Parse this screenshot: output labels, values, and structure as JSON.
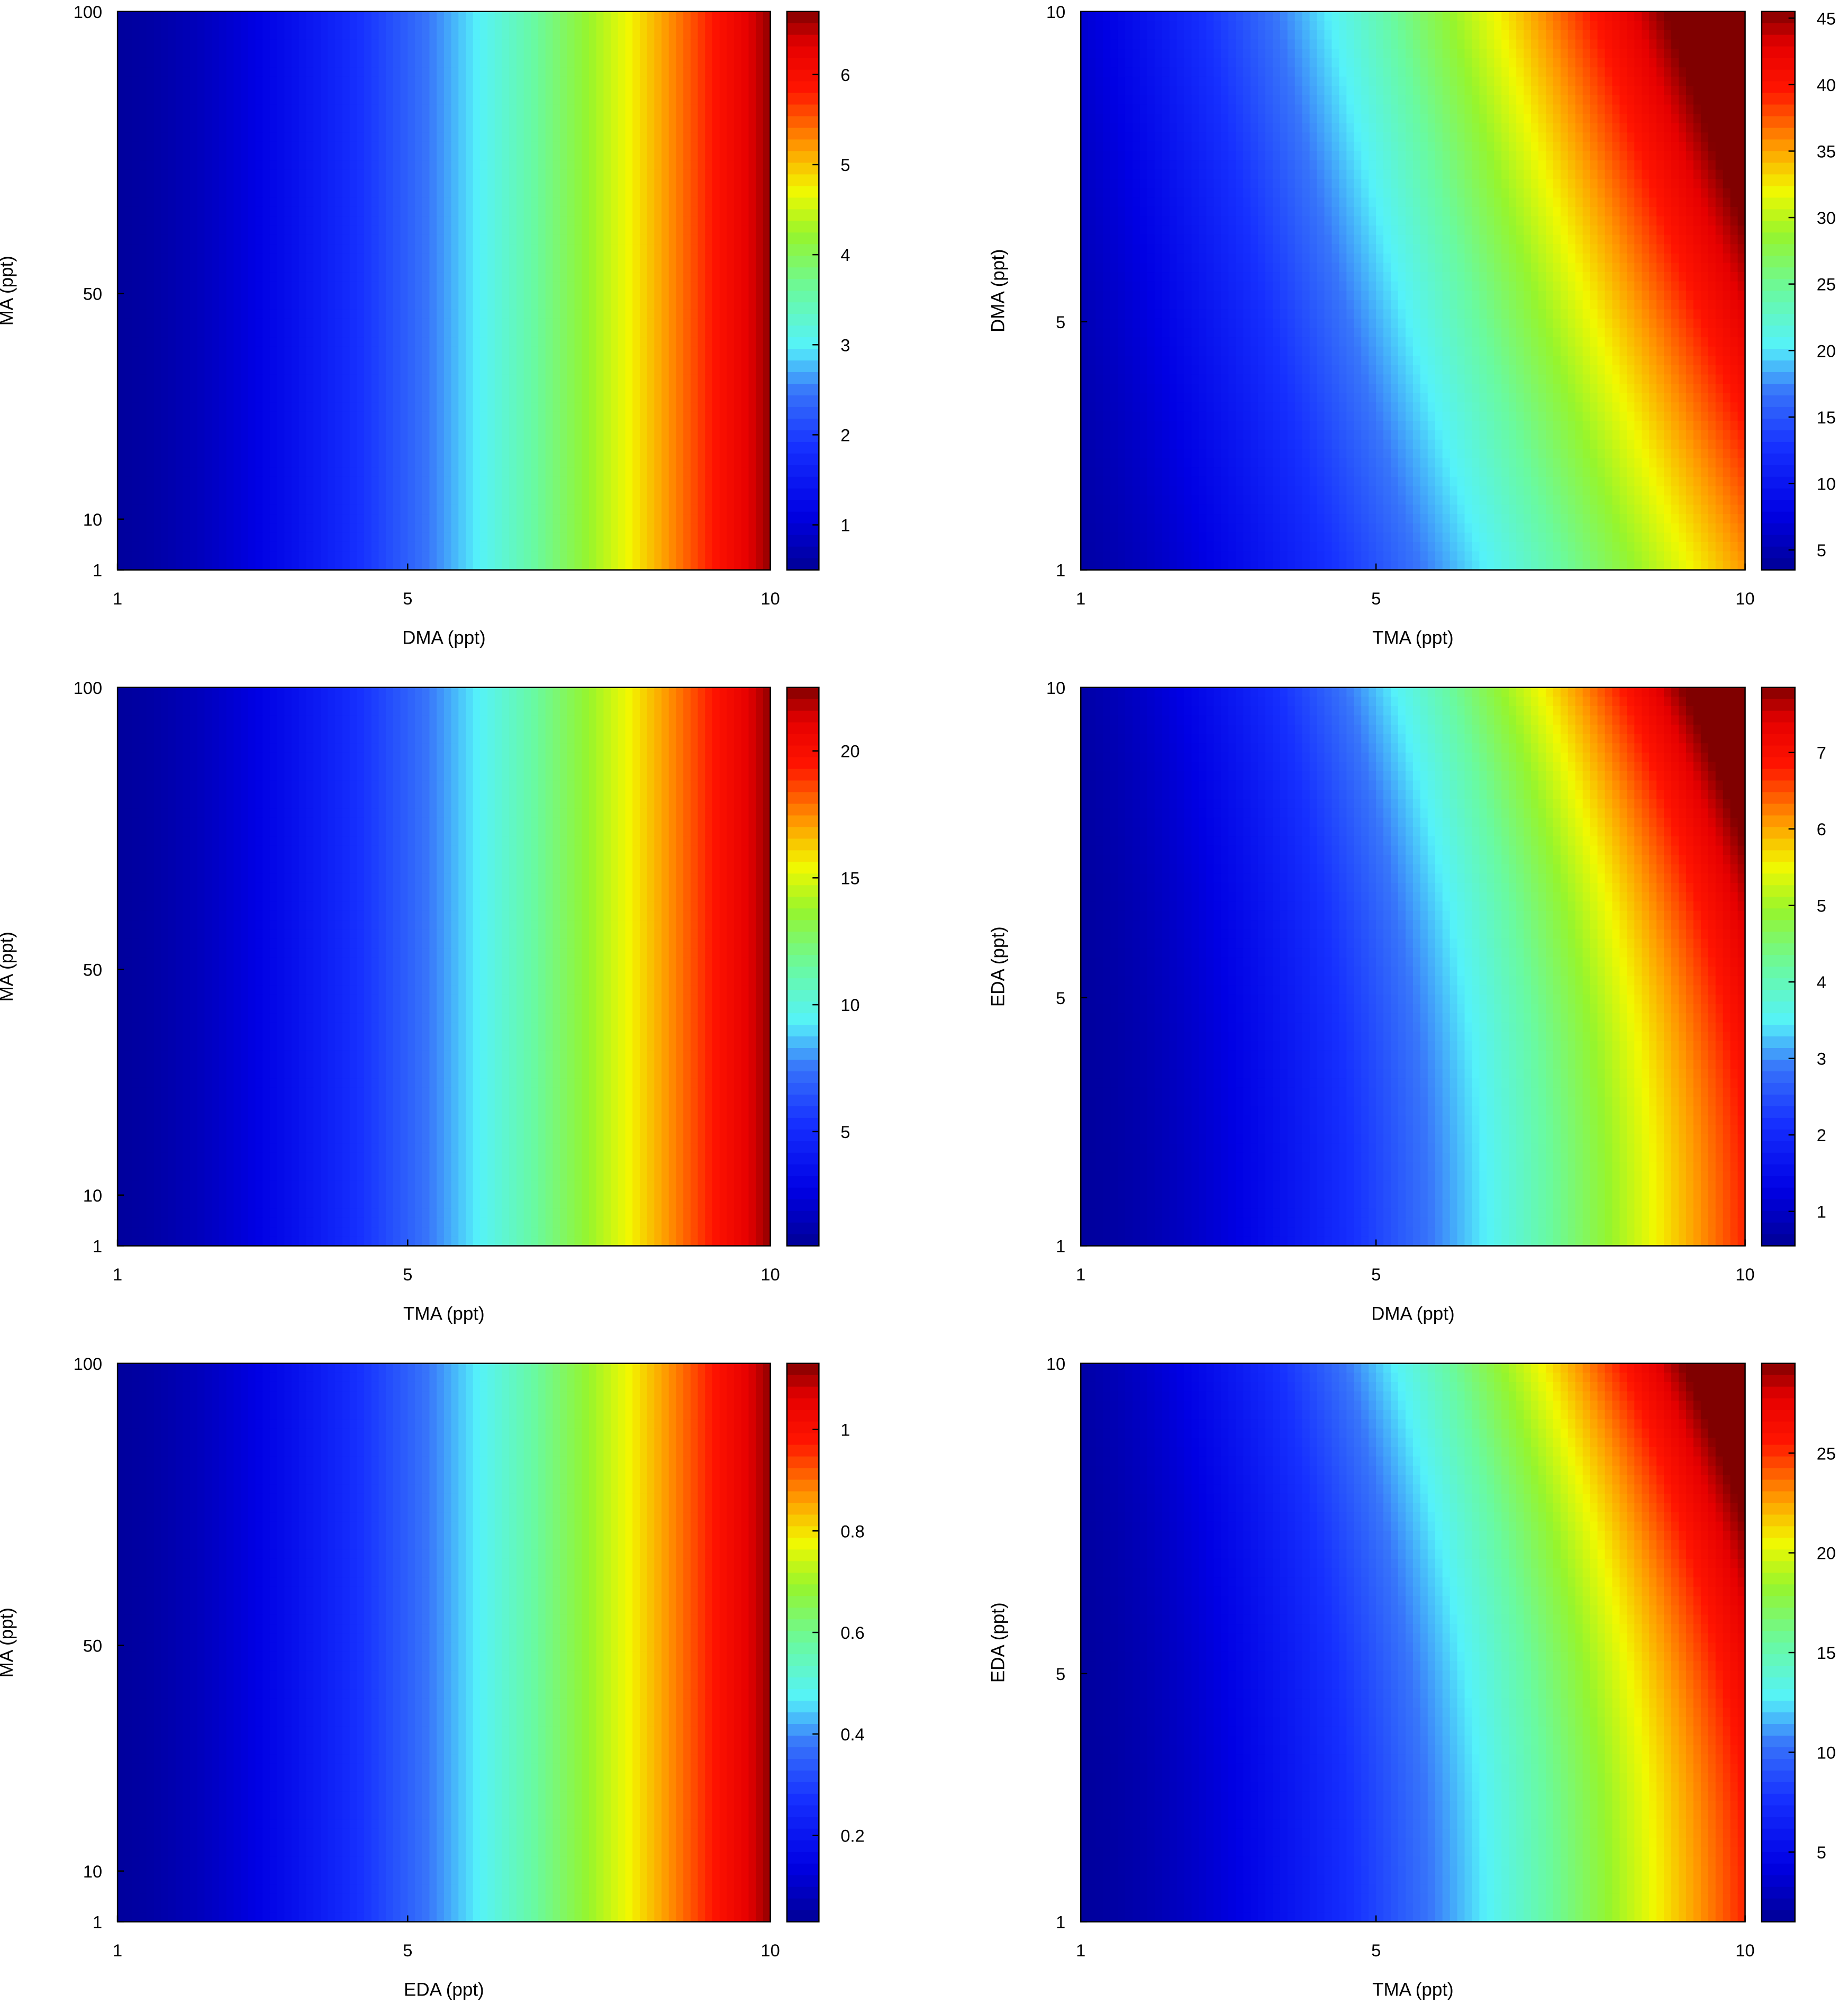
{
  "chart_data": [
    {
      "type": "heatmap",
      "xlabel": "DMA (ppt)",
      "ylabel": "MA (ppt)",
      "xlim": [
        1,
        10
      ],
      "ylim": [
        1,
        100
      ],
      "x_ticks": [
        "1",
        "5",
        "10"
      ],
      "y_ticks": [
        "1",
        "10",
        "50",
        "100"
      ],
      "colorbar": {
        "range": [
          0.5,
          6.7
        ],
        "ticks": [
          "1",
          "2",
          "3",
          "4",
          "5",
          "6"
        ]
      },
      "value_range": [
        0.5,
        6.7
      ],
      "x_position_of_value": [
        0,
        0.03,
        0.26,
        0.56,
        0.78,
        0.9,
        1.0
      ],
      "pattern": "vertical",
      "samples": [
        {
          "x": 1,
          "values": [
            0.5
          ]
        },
        {
          "x": 3,
          "values": [
            1.4
          ]
        },
        {
          "x": 6,
          "values": [
            2.9
          ]
        },
        {
          "x": 8,
          "values": [
            4.4
          ]
        },
        {
          "x": 9,
          "values": [
            5.4
          ]
        },
        {
          "x": 10,
          "values": [
            6.7
          ]
        }
      ]
    },
    {
      "type": "heatmap",
      "xlabel": "TMA (ppt)",
      "ylabel": "DMA (ppt)",
      "xlim": [
        1,
        10
      ],
      "ylim": [
        1,
        10
      ],
      "x_ticks": [
        "1",
        "5",
        "10"
      ],
      "y_ticks": [
        "1",
        "5",
        "10"
      ],
      "colorbar": {
        "range": [
          3.5,
          45.5
        ],
        "ticks": [
          "5",
          "10",
          "15",
          "20",
          "25",
          "30",
          "35",
          "40",
          "45"
        ]
      },
      "value_range": [
        3.5,
        45.5
      ],
      "pattern": "diagonal",
      "samples": [
        {
          "x": 1,
          "y": 1,
          "value": 3.6
        },
        {
          "x": 7,
          "y": 1,
          "value": 16
        },
        {
          "x": 10,
          "y": 1,
          "value": 30
        },
        {
          "x": 4,
          "y": 10,
          "value": 16
        },
        {
          "x": 8,
          "y": 10,
          "value": 30
        },
        {
          "x": 10,
          "y": 10,
          "value": 45
        }
      ]
    },
    {
      "type": "heatmap",
      "xlabel": "TMA (ppt)",
      "ylabel": "MA (ppt)",
      "xlim": [
        1,
        10
      ],
      "ylim": [
        1,
        100
      ],
      "x_ticks": [
        "1",
        "5",
        "10"
      ],
      "y_ticks": [
        "1",
        "10",
        "50",
        "100"
      ],
      "colorbar": {
        "range": [
          0.5,
          22.5
        ],
        "ticks": [
          "5",
          "10",
          "15",
          "20"
        ]
      },
      "value_range": [
        0.5,
        22.5
      ],
      "x_position_of_value": [
        0,
        0.06,
        0.3,
        0.58,
        0.8,
        0.9,
        1.0
      ],
      "pattern": "vertical",
      "samples": [
        {
          "x": 1,
          "values": [
            1
          ]
        },
        {
          "x": 6,
          "values": [
            6
          ]
        },
        {
          "x": 7.5,
          "values": [
            9
          ]
        },
        {
          "x": 9,
          "values": [
            16
          ]
        },
        {
          "x": 10,
          "values": [
            22
          ]
        }
      ]
    },
    {
      "type": "heatmap",
      "xlabel": "DMA (ppt)",
      "ylabel": "EDA (ppt)",
      "xlim": [
        1,
        10
      ],
      "ylim": [
        1,
        10
      ],
      "x_ticks": [
        "1",
        "5",
        "10"
      ],
      "y_ticks": [
        "1",
        "5",
        "10"
      ],
      "colorbar": {
        "range": [
          0.55,
          7.85
        ],
        "ticks": [
          "1",
          "2",
          "3",
          "4",
          "5",
          "6",
          "7"
        ]
      },
      "value_range": [
        0.55,
        7.85
      ],
      "pattern": "curved",
      "samples": [
        {
          "x": 1,
          "y": 1,
          "value": 0.6
        },
        {
          "x": 7,
          "y": 1,
          "value": 3
        },
        {
          "x": 10,
          "y": 1,
          "value": 6.5
        },
        {
          "x": 4,
          "y": 10,
          "value": 3
        },
        {
          "x": 10,
          "y": 10,
          "value": 7.8
        }
      ]
    },
    {
      "type": "heatmap",
      "xlabel": "EDA (ppt)",
      "ylabel": "MA (ppt)",
      "xlim": [
        1,
        10
      ],
      "ylim": [
        1,
        100
      ],
      "x_ticks": [
        "1",
        "5",
        "10"
      ],
      "y_ticks": [
        "1",
        "10",
        "50",
        "100"
      ],
      "colorbar": {
        "range": [
          0.03,
          1.13
        ],
        "ticks": [
          "0.2",
          "0.4",
          "0.6",
          "0.8",
          "1"
        ]
      },
      "value_range": [
        0.03,
        1.13
      ],
      "x_position_of_value": [
        0,
        0.05,
        0.3,
        0.58,
        0.8,
        0.9,
        1.0
      ],
      "pattern": "vertical",
      "samples": [
        {
          "x": 1,
          "values": [
            0.05
          ]
        },
        {
          "x": 6.5,
          "values": [
            0.37
          ]
        },
        {
          "x": 8.5,
          "values": [
            0.7
          ]
        },
        {
          "x": 10,
          "values": [
            1.12
          ]
        }
      ]
    },
    {
      "type": "heatmap",
      "xlabel": "TMA (ppt)",
      "ylabel": "EDA (ppt)",
      "xlim": [
        1,
        10
      ],
      "ylim": [
        1,
        10
      ],
      "x_ticks": [
        "1",
        "5",
        "10"
      ],
      "y_ticks": [
        "1",
        "5",
        "10"
      ],
      "colorbar": {
        "range": [
          1.5,
          29.5
        ],
        "ticks": [
          "5",
          "10",
          "15",
          "20",
          "25"
        ]
      },
      "value_range": [
        1.5,
        29.5
      ],
      "pattern": "curved",
      "samples": [
        {
          "x": 1,
          "y": 1,
          "value": 2
        },
        {
          "x": 8,
          "y": 1,
          "value": 10
        },
        {
          "x": 10,
          "y": 1,
          "value": 22
        },
        {
          "x": 5,
          "y": 10,
          "value": 10
        },
        {
          "x": 10,
          "y": 10,
          "value": 29
        }
      ]
    }
  ]
}
